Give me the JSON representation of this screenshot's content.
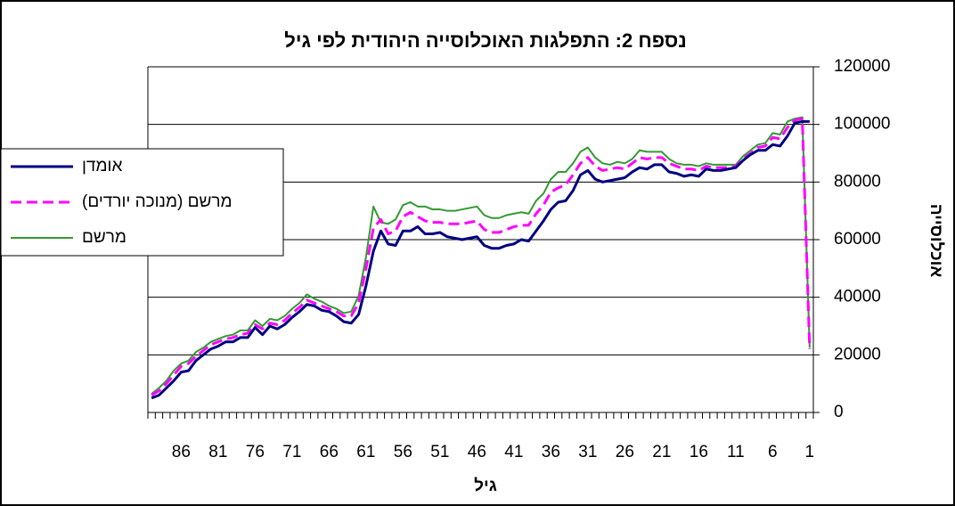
{
  "chart_data": {
    "type": "line",
    "title": "נספח 2: התפלגות האוכלוסייה היהודית לפי גיל",
    "x_label": "גיל",
    "y_label": "אוכלוסייה",
    "categories": [
      null,
      null,
      null,
      null,
      "86",
      null,
      null,
      null,
      null,
      "81",
      null,
      null,
      null,
      null,
      "76",
      null,
      null,
      null,
      null,
      "71",
      null,
      null,
      null,
      null,
      "66",
      null,
      null,
      null,
      null,
      "61",
      null,
      null,
      null,
      null,
      "56",
      null,
      null,
      null,
      null,
      "51",
      null,
      null,
      null,
      null,
      "46",
      null,
      null,
      null,
      null,
      "41",
      null,
      null,
      null,
      null,
      "36",
      null,
      null,
      null,
      null,
      "31",
      null,
      null,
      null,
      null,
      "26",
      null,
      null,
      null,
      null,
      "21",
      null,
      null,
      null,
      null,
      "16",
      null,
      null,
      null,
      null,
      "11",
      null,
      null,
      null,
      null,
      "6",
      null,
      null,
      null,
      null,
      "1"
    ],
    "series": [
      {
        "name": "אומדן",
        "color": "#000080",
        "values": [
          5000,
          6000,
          8500,
          11000,
          14000,
          14500,
          18000,
          20000,
          22000,
          23000,
          24500,
          24500,
          26000,
          26000,
          29500,
          27000,
          30000,
          29000,
          30500,
          33000,
          35000,
          37500,
          37000,
          35500,
          35000,
          33500,
          31500,
          31000,
          34000,
          44000,
          56000,
          63000,
          58500,
          58000,
          63000,
          63000,
          64500,
          62000,
          62000,
          62500,
          61000,
          60500,
          60000,
          60500,
          61000,
          58000,
          57000,
          57000,
          58000,
          58500,
          60000,
          59500,
          63000,
          66500,
          70500,
          73000,
          73500,
          77000,
          82500,
          84000,
          81000,
          80000,
          80500,
          81000,
          81500,
          83500,
          85000,
          84500,
          86000,
          86000,
          83500,
          83000,
          82000,
          82500,
          82000,
          84500,
          84000,
          84000,
          84500,
          85000,
          87500,
          89500,
          91000,
          91000,
          93000,
          92500,
          96000,
          100500,
          101000,
          101000
        ]
      },
      {
        "name": "מרשם (מנוכה יורדים)",
        "color": "#ff00ff",
        "values": [
          6000,
          7500,
          10000,
          13000,
          16000,
          17000,
          19500,
          21500,
          23500,
          24500,
          25500,
          26000,
          27000,
          27500,
          30500,
          29000,
          31000,
          30500,
          32000,
          34500,
          36500,
          39000,
          38000,
          37000,
          36000,
          35000,
          33500,
          33500,
          38000,
          50000,
          64000,
          67000,
          62000,
          63000,
          68000,
          69500,
          68000,
          66500,
          66000,
          66000,
          65500,
          65500,
          65500,
          66000,
          66500,
          63500,
          62500,
          62500,
          63500,
          64500,
          65000,
          65000,
          69000,
          72000,
          76500,
          78000,
          79000,
          82500,
          86500,
          88500,
          85500,
          84000,
          84500,
          85000,
          84500,
          86500,
          88500,
          88000,
          88500,
          88500,
          86500,
          85500,
          84500,
          84500,
          84000,
          85500,
          85000,
          85000,
          85000,
          85500,
          88000,
          90000,
          92000,
          92500,
          95500,
          95000,
          99000,
          101500,
          102000,
          22000
        ]
      },
      {
        "name": "מרשם",
        "color": "#339933",
        "values": [
          6500,
          8500,
          11000,
          14500,
          17000,
          18000,
          21000,
          22500,
          24500,
          25500,
          26500,
          27000,
          28500,
          28500,
          32000,
          30000,
          32500,
          32000,
          33500,
          36000,
          38000,
          41000,
          39500,
          38500,
          37000,
          36000,
          34500,
          35000,
          40500,
          54000,
          71500,
          66000,
          65500,
          67000,
          72000,
          73000,
          71500,
          71500,
          70500,
          70500,
          70000,
          70000,
          70500,
          71000,
          71500,
          68500,
          67500,
          67500,
          68500,
          69000,
          69500,
          69000,
          73500,
          76000,
          81000,
          83500,
          83500,
          86500,
          90500,
          92000,
          88500,
          86500,
          86000,
          87000,
          86500,
          88000,
          91000,
          90500,
          90500,
          90500,
          88000,
          86500,
          86000,
          86000,
          85500,
          86500,
          86000,
          86000,
          86000,
          86000,
          89000,
          91000,
          93000,
          93500,
          97000,
          96500,
          101000,
          102000,
          102500,
          22500
        ]
      }
    ],
    "ylim": [
      0,
      120000
    ],
    "yticks": [
      0,
      20000,
      40000,
      60000,
      80000,
      100000,
      120000
    ],
    "grid": true,
    "legend": "left"
  }
}
